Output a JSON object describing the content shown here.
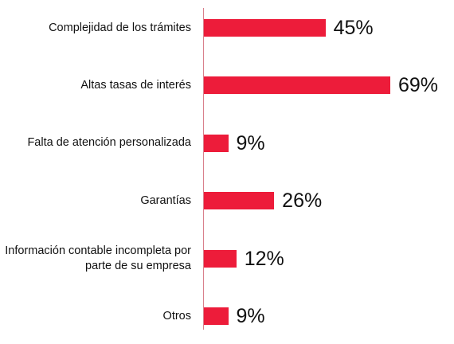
{
  "chart_data": {
    "type": "bar",
    "orientation": "horizontal",
    "categories": [
      "Complejidad de los trámites",
      "Altas tasas de interés",
      "Falta de atención personalizada",
      "Garantías",
      "Información contable incompleta por parte de su empresa",
      "Otros"
    ],
    "values": [
      45,
      69,
      9,
      26,
      12,
      9
    ],
    "value_labels": [
      "45%",
      "69%",
      "9%",
      "26%",
      "12%",
      "9%"
    ],
    "color": "#ed1c3a"
  }
}
